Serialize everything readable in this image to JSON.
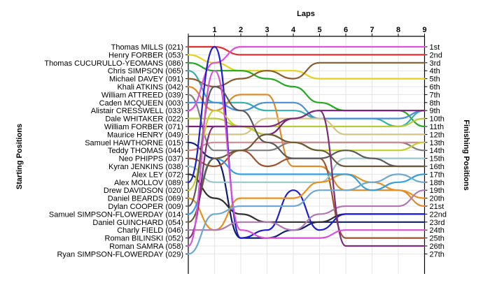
{
  "chart_data": {
    "type": "line",
    "title": "Laps",
    "ylabel_left": "Starting Positions",
    "ylabel_right": "Finishing Positions",
    "x": [
      0,
      1,
      2,
      3,
      4,
      5,
      6,
      7,
      8,
      9
    ],
    "x_tick_labels": [
      "1",
      "2",
      "3",
      "4",
      "5",
      "6",
      "7",
      "8",
      "9"
    ],
    "y_range": [
      1,
      27
    ],
    "y_inverted": true,
    "grid": true,
    "starting_labels": [
      "Thomas MILLS (021)",
      "Henry FORBER (053)",
      "Thomas CUCURULLO-YEOMANS (086)",
      "Chris SIMPSON (065)",
      "Michael DAVEY (091)",
      "Khali ATKINS (042)",
      "William ATTREED (039)",
      "Caden MCQUEEN (003)",
      "Alistair CRESSWELL (033)",
      "Dale WHITAKER (022)",
      "William FORBER (071)",
      "Maurice HENRY (049)",
      "Samuel HAWTHORNE (015)",
      "Teddy THOMAS (044)",
      "Neo PHIPPS (037)",
      "Kyran JENKINS (038)",
      "Alex LEY (072)",
      "Alex MOLLOV (089)",
      "Drew DAVIDSON (020)",
      "Daniel BEARDS (069)",
      "Dylan COOPER (009)",
      "Samuel SIMPSON-FLOWERDAY (014)",
      "Daniel GUINCHARD (054)",
      "Charly FIELD (046)",
      "Roman BILINSKI (052)",
      "Roman SAMRA (058)",
      "Ryan SIMPSON-FLOWERDAY (029)"
    ],
    "finishing_labels": [
      "1st",
      "2nd",
      "3rd",
      "4th",
      "5th",
      "6th",
      "7th",
      "8th",
      "9th",
      "10th",
      "11th",
      "12th",
      "13th",
      "14th",
      "15th",
      "16th",
      "17th",
      "18th",
      "19th",
      "20th",
      "21st",
      "22nd",
      "23rd",
      "24th",
      "25th",
      "26th",
      "27th"
    ],
    "series": [
      {
        "color": "#e03030",
        "values": [
          1,
          1,
          2,
          2,
          2,
          2,
          2,
          2,
          2,
          2
        ]
      },
      {
        "color": "#e6d21e",
        "values": [
          2,
          3,
          4,
          4,
          4,
          5,
          5,
          5,
          5,
          5
        ]
      },
      {
        "color": "#23a923",
        "values": [
          3,
          4,
          4,
          5,
          6,
          8,
          9,
          9,
          9,
          11
        ]
      },
      {
        "color": "#33b0b0",
        "values": [
          4,
          8,
          8,
          9,
          9,
          10,
          10,
          10,
          11,
          9
        ]
      },
      {
        "color": "#8b5a2b",
        "values": [
          5,
          6,
          5,
          4,
          5,
          3,
          3,
          3,
          3,
          3
        ]
      },
      {
        "color": "#e08a28",
        "values": [
          6,
          9,
          7,
          7,
          16,
          16,
          19,
          19,
          19,
          21
        ]
      },
      {
        "color": "#808080",
        "values": [
          7,
          14,
          14,
          14,
          13,
          13,
          13,
          13,
          13,
          14
        ]
      },
      {
        "color": "#4a8ed8",
        "values": [
          8,
          8,
          9,
          8,
          8,
          10,
          10,
          10,
          10,
          9
        ]
      },
      {
        "color": "#e050e0",
        "values": [
          9,
          3,
          1,
          1,
          1,
          1,
          1,
          1,
          1,
          1
        ]
      },
      {
        "color": "#b8ca3a",
        "values": [
          10,
          10,
          11,
          11,
          11,
          11,
          11,
          11,
          11,
          10
        ]
      },
      {
        "color": "#7a1e7a",
        "values": [
          11,
          11,
          11,
          12,
          10,
          9,
          9,
          9,
          9,
          9
        ]
      },
      {
        "color": "#d4c486",
        "values": [
          12,
          12,
          12,
          10,
          10,
          10,
          12,
          12,
          12,
          12
        ]
      },
      {
        "color": "#0f1f6e",
        "values": [
          13,
          15,
          25,
          25,
          24,
          23,
          23,
          23,
          23,
          23
        ]
      },
      {
        "color": "#d88a8a",
        "values": [
          14,
          13,
          13,
          13,
          13,
          13,
          13,
          13,
          13,
          13
        ]
      },
      {
        "color": "#a0522d",
        "values": [
          15,
          16,
          14,
          16,
          15,
          15,
          25,
          25,
          25,
          25
        ]
      },
      {
        "color": "#9ac8c8",
        "values": [
          16,
          18,
          18,
          18,
          18,
          18,
          15,
          15,
          15,
          15
        ]
      },
      {
        "color": "#2f2f2f",
        "values": [
          17,
          20,
          22,
          23,
          23,
          23,
          22,
          22,
          22,
          22
        ]
      },
      {
        "color": "#1d1dd0",
        "values": [
          18,
          1,
          25,
          24,
          19,
          24,
          22,
          22,
          22,
          22
        ]
      },
      {
        "color": "#c7cf2a",
        "values": [
          19,
          9,
          11,
          12,
          13,
          14,
          14,
          14,
          14,
          13
        ]
      },
      {
        "color": "#e89020",
        "values": [
          20,
          24,
          20,
          20,
          20,
          18,
          17,
          18,
          19,
          20
        ]
      },
      {
        "color": "#5a5a5a",
        "values": [
          21,
          6,
          9,
          13,
          15,
          15,
          14,
          15,
          16,
          16
        ]
      },
      {
        "color": "#30a0e0",
        "values": [
          22,
          15,
          17,
          17,
          17,
          17,
          17,
          19,
          18,
          17
        ]
      },
      {
        "color": "#6a5a3a",
        "values": [
          23,
          15,
          14,
          12,
          13,
          14,
          16,
          16,
          16,
          16
        ]
      },
      {
        "color": "#b07ab0",
        "values": [
          24,
          24,
          23,
          23,
          24,
          22,
          21,
          21,
          21,
          19
        ]
      },
      {
        "color": "#7a2f7a",
        "values": [
          25,
          11,
          11,
          11,
          10,
          9,
          26,
          26,
          26,
          26
        ]
      },
      {
        "color": "#d850d8",
        "values": [
          26,
          4,
          24,
          25,
          25,
          25,
          24,
          24,
          24,
          24
        ]
      },
      {
        "color": "#6fa8d0",
        "values": [
          27,
          22,
          21,
          21,
          21,
          19,
          19,
          18,
          17,
          18
        ]
      }
    ]
  }
}
